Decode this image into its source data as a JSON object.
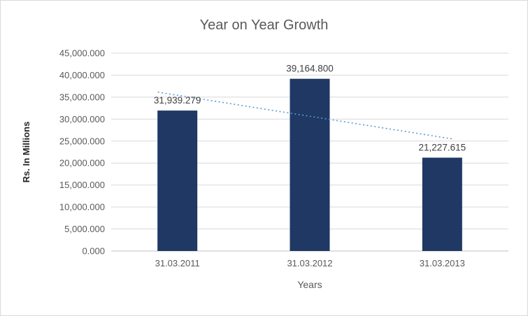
{
  "chart_data": {
    "type": "bar",
    "title": "Year on Year Growth",
    "xlabel": "Years",
    "ylabel": "Rs. In Millions",
    "categories": [
      "31.03.2011",
      "31.03.2012",
      "31.03.2013"
    ],
    "values": [
      31939.279,
      39164.8,
      21227.615
    ],
    "data_labels": [
      "31,939.279",
      "39,164.800",
      "21,227.615"
    ],
    "ylim": [
      0,
      45000
    ],
    "yticks": [
      {
        "value": 45000,
        "label": "45,000.000"
      },
      {
        "value": 40000,
        "label": "40,000.000"
      },
      {
        "value": 35000,
        "label": "35,000.000"
      },
      {
        "value": 30000,
        "label": "30,000.000"
      },
      {
        "value": 25000,
        "label": "25,000.000"
      },
      {
        "value": 20000,
        "label": "20,000.000"
      },
      {
        "value": 15000,
        "label": "15,000.000"
      },
      {
        "value": 10000,
        "label": "10,000.000"
      },
      {
        "value": 5000,
        "label": "5,000.000"
      },
      {
        "value": 0,
        "label": "0.000"
      }
    ],
    "grid": true,
    "legend": false,
    "bar_color": "#1F3864",
    "trendline": {
      "type": "linear",
      "style": "dotted",
      "color": "#5B9BD5",
      "start_value": 36133,
      "end_value": 25421
    }
  }
}
